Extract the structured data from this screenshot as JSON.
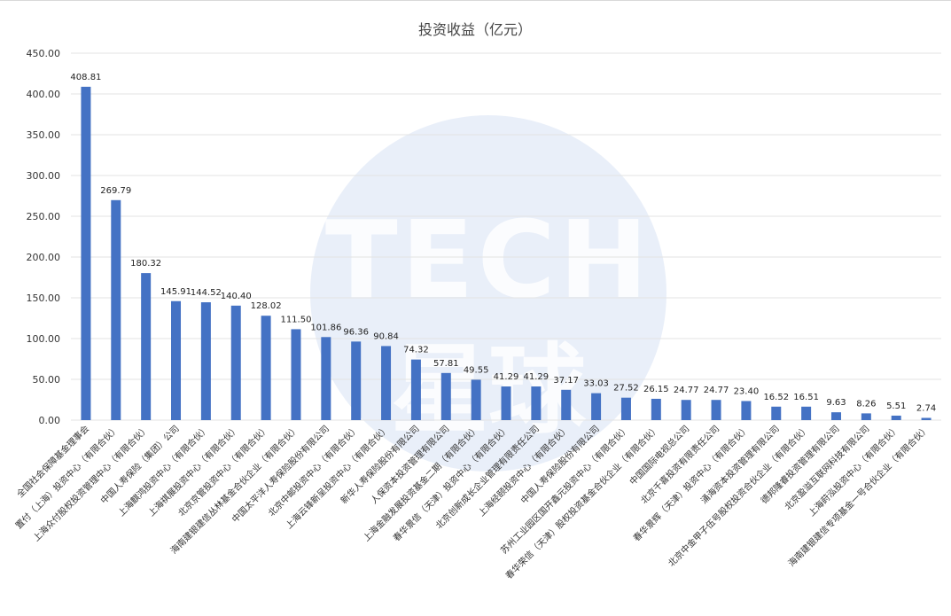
{
  "chart_data": {
    "type": "bar",
    "title": "投资收益（亿元）",
    "ylim": [
      0,
      450
    ],
    "yticks": [
      "0.00",
      "50.00",
      "100.00",
      "150.00",
      "200.00",
      "250.00",
      "300.00",
      "350.00",
      "400.00",
      "450.00"
    ],
    "grid": true,
    "bar_color": "#4472c4",
    "categories": [
      "全国社会保障基金理事会",
      "置付（上海）投资中心（有限合伙）",
      "上海众付股权投资管理中心（有限合伙）",
      "中国人寿保险（集团）公司",
      "上海麒鸿投资中心（有限合伙）",
      "上海祺展投资中心（有限合伙）",
      "北京京管投资中心（有限合伙）",
      "海南建银建信丛林基金合伙企业（有限合伙）",
      "中国太平洋人寿保险股份有限公司",
      "北京中邮投资中心（有限合伙）",
      "上海云锋新呈投资中心（有限合伙）",
      "新华人寿保险股份有限公司",
      "人保资本投资管理有限公司",
      "上海金融发展投资基金二期（有限合伙）",
      "春华景信（天津）投资中心（有限合伙）",
      "北京创新成长企业管理有限责任公司",
      "上海经颐投资中心（有限合伙）",
      "中国人寿保险股份有限公司",
      "苏州工业园区国开鑫元投资中心（有限合伙）",
      "春华荣信（天津）股权投资基金合伙企业（有限合伙）",
      "中国国际电视总公司",
      "北京千喜投资有限责任公司",
      "春华景辉（天津）投资中心（有限合伙）",
      "涌海资本投资管理有限公司",
      "北京中金甲子伍号股权投资合伙企业（有限合伙）",
      "德邦隆睿投资管理有限公司",
      "北京盈溢互联网科技有限公司",
      "上海莳泓投资中心（有限合伙）",
      "海南建银建信专项基金一号合伙企业（有限合伙）"
    ],
    "values": [
      408.81,
      269.79,
      180.32,
      145.91,
      144.52,
      140.4,
      128.02,
      111.5,
      101.86,
      96.36,
      90.84,
      74.32,
      57.81,
      49.55,
      41.29,
      41.29,
      37.17,
      33.03,
      27.52,
      26.15,
      24.77,
      24.77,
      23.4,
      16.52,
      16.51,
      9.63,
      8.26,
      5.51,
      2.74
    ],
    "data_labels": [
      "408.81",
      "269.79",
      "180.32",
      "145.91",
      "144.52",
      "140.40",
      "128.02",
      "111.50",
      "101.86",
      "96.36",
      "90.84",
      "74.32",
      "57.81",
      "49.55",
      "41.29",
      "41.29",
      "37.17",
      "33.03",
      "27.52",
      "26.15",
      "24.77",
      "24.77",
      "23.40",
      "16.52",
      "16.51",
      "9.63",
      "8.26",
      "5.51",
      "2.74"
    ]
  },
  "watermark": {
    "line1": "TECH",
    "line2": "星球"
  }
}
